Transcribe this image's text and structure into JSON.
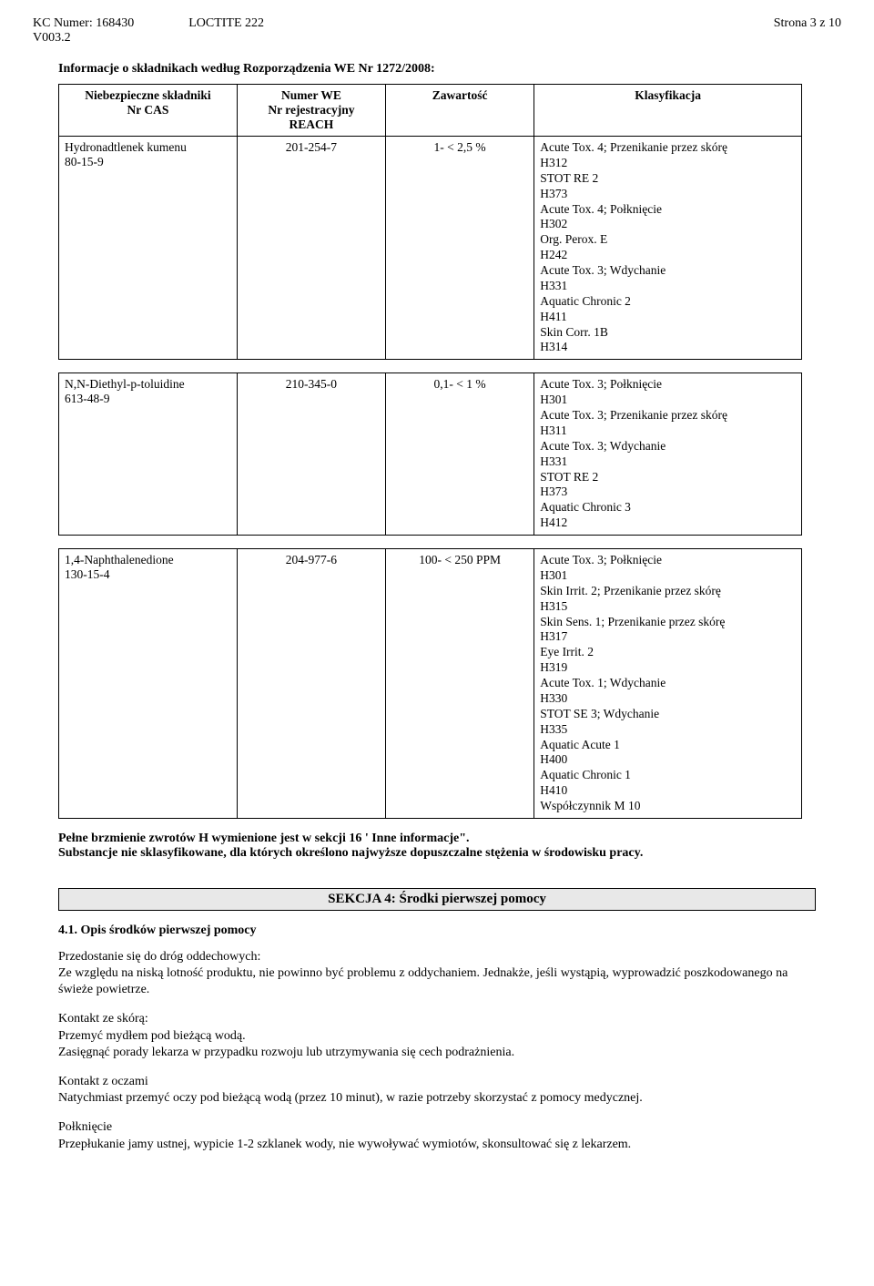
{
  "header": {
    "kc_line": "KC Numer: 168430",
    "version": "V003.2",
    "product": "LOCTITE 222",
    "page": "Strona 3 z 10"
  },
  "info_title": "Informacje o składnikach według Rozporządzenia WE Nr 1272/2008:",
  "table_headers": {
    "c1a": "Niebezpieczne składniki",
    "c1b": "Nr CAS",
    "c2a": "Numer WE",
    "c2b": "Nr rejestracyjny",
    "c2c": "REACH",
    "c3": "Zawartość",
    "c4": "Klasyfikacja"
  },
  "row1": {
    "name": "Hydronadtlenek kumenu",
    "cas": "80-15-9",
    "we": "201-254-7",
    "content": "1- <  2,5 %",
    "class": "Acute Tox. 4;  Przenikanie przez skórę\nH312\nSTOT RE 2\nH373\nAcute Tox. 4;  Połknięcie\nH302\nOrg. Perox. E\nH242\nAcute Tox. 3;  Wdychanie\nH331\nAquatic Chronic 2\nH411\nSkin Corr. 1B\nH314"
  },
  "row2": {
    "name": "N,N-Diethyl-p-toluidine",
    "cas": "613-48-9",
    "we": "210-345-0",
    "content": "0,1- <   1 %",
    "class": "Acute Tox. 3;  Połknięcie\nH301\nAcute Tox. 3;  Przenikanie przez skórę\nH311\nAcute Tox. 3;  Wdychanie\nH331\nSTOT RE 2\nH373\nAquatic Chronic 3\nH412"
  },
  "row3": {
    "name": "1,4-Naphthalenedione",
    "cas": "130-15-4",
    "we": "204-977-6",
    "content": "100- < 250 PPM",
    "class": "Acute Tox. 3;  Połknięcie\nH301\nSkin Irrit. 2;  Przenikanie przez skórę\nH315\nSkin Sens. 1;  Przenikanie przez skórę\nH317\nEye Irrit. 2\nH319\nAcute Tox. 1;  Wdychanie\nH330\nSTOT SE 3;  Wdychanie\nH335\nAquatic Acute 1\nH400\nAquatic Chronic 1\nH410\nWspółczynnik M 10"
  },
  "footnote1": "Pełne brzmienie zwrotów H wymienione jest w sekcji 16 ' Inne informacje\".",
  "footnote2": "Substancje nie sklasyfikowane, dla których określono najwyższe dopuszczalne stężenia w środowisku pracy.",
  "section4": {
    "bar": "SEKCJA 4: Środki pierwszej pomocy",
    "sub": "4.1. Opis środków pierwszej pomocy",
    "p1_lead": "Przedostanie się do dróg oddechowych:",
    "p1_body": "Ze względu na niską lotność produktu, nie powinno być problemu z oddychaniem. Jednakże, jeśli wystąpią, wyprowadzić poszkodowanego na świeże powietrze.",
    "p2_lead": "Kontakt ze skórą:",
    "p2_body1": "Przemyć mydłem pod bieżącą wodą.",
    "p2_body2": "Zasięgnąć porady lekarza w przypadku rozwoju lub utrzymywania się cech podrażnienia.",
    "p3_lead": "Kontakt z oczami",
    "p3_body": "Natychmiast przemyć oczy pod bieżącą wodą (przez 10 minut), w razie potrzeby skorzystać z pomocy medycznej.",
    "p4_lead": "Połknięcie",
    "p4_body": "Przepłukanie jamy ustnej, wypicie 1-2 szklanek wody, nie wywoływać wymiotów, skonsultować się z lekarzem."
  }
}
